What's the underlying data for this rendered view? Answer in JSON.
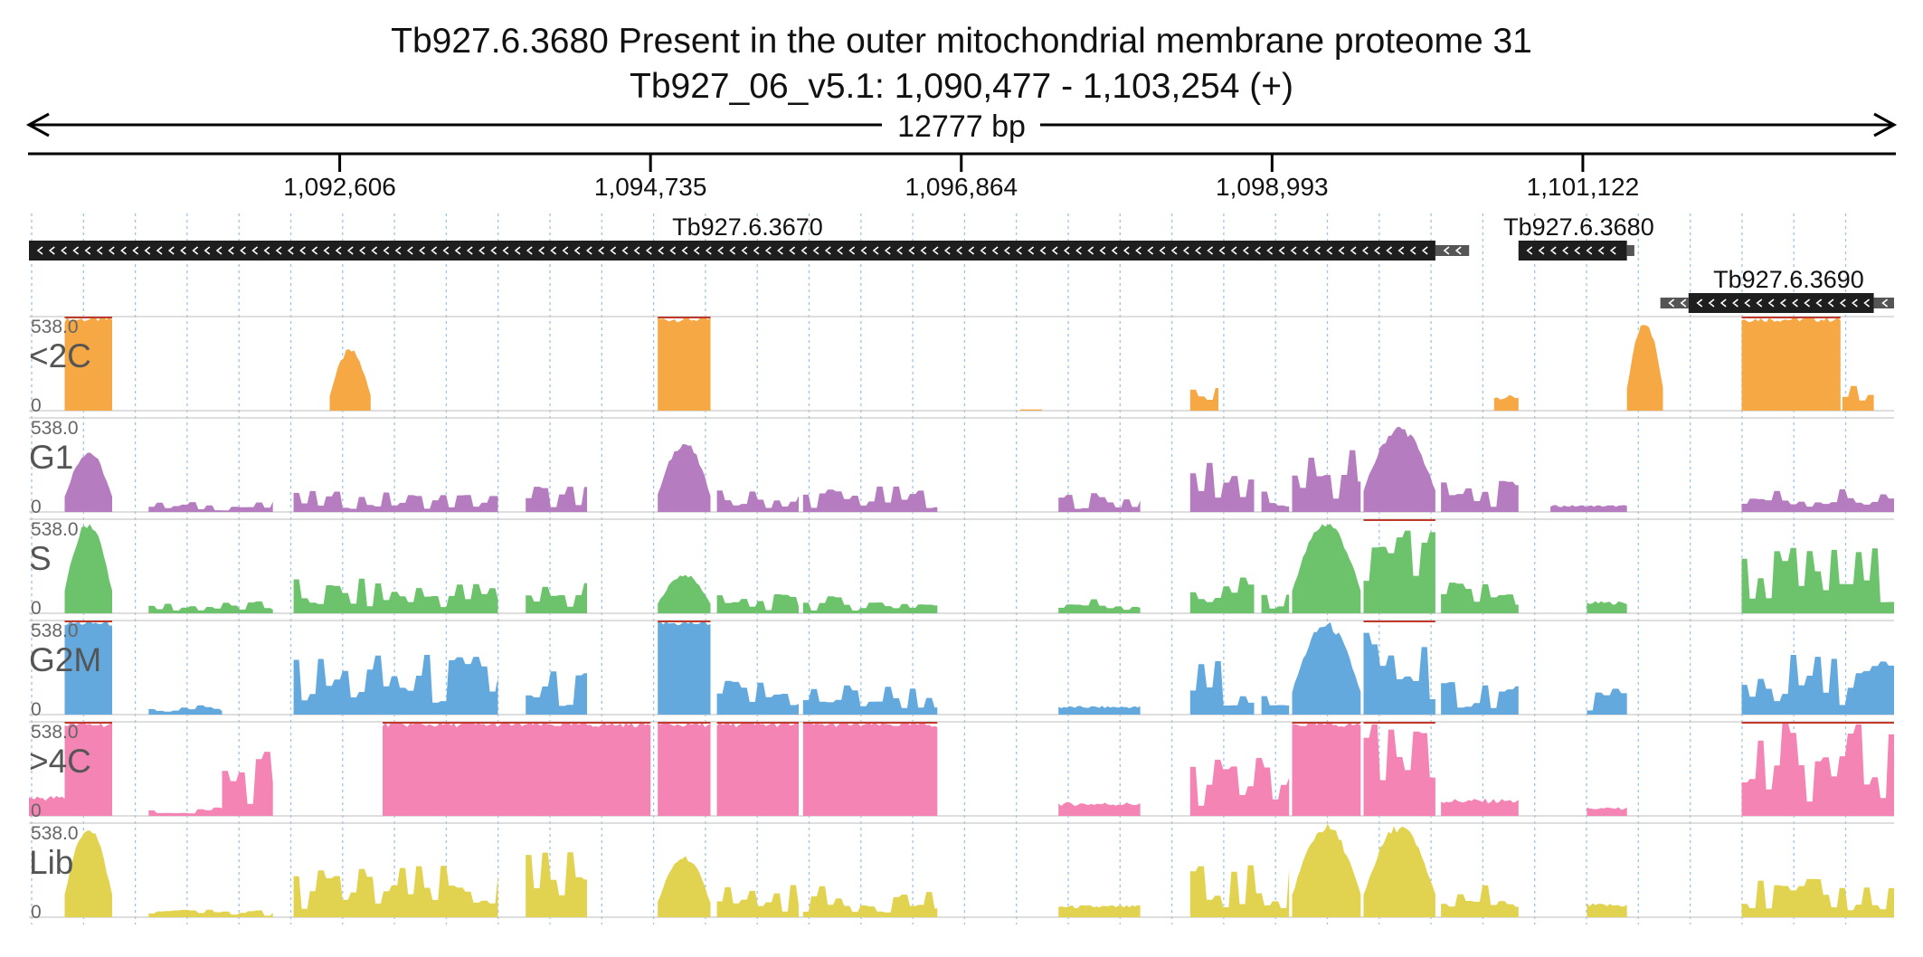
{
  "chart_data": {
    "type": "area",
    "title": "Tb927.6.3680  Present in the outer mitochondrial membrane proteome 31",
    "subtitle": "Tb927_06_v5.1: 1,090,477 - 1,103,254 (+)",
    "span_label": "12777 bp",
    "region": {
      "start": 1090477,
      "end": 1103254
    },
    "ticks": [
      {
        "pos": 1092606,
        "label": "1,092,606"
      },
      {
        "pos": 1094735,
        "label": "1,094,735"
      },
      {
        "pos": 1096864,
        "label": "1,096,864"
      },
      {
        "pos": 1098993,
        "label": "1,098,993"
      },
      {
        "pos": 1101122,
        "label": "1,101,122"
      }
    ],
    "genes": [
      {
        "name": "Tb927.6.3670",
        "label": "Tb927.6.3670",
        "cds": [
          1090477,
          1100112
        ],
        "utr": [
          1100112,
          1100343
        ],
        "strand": "-",
        "row": 0,
        "label_pos": 1095400
      },
      {
        "name": "Tb927.6.3680",
        "label": "Tb927.6.3680",
        "cds": [
          1100681,
          1101424
        ],
        "utr": [
          1101424,
          1101475
        ],
        "strand": "-",
        "row": 0,
        "label_pos": 1101094
      },
      {
        "name": "Tb927.6.3690",
        "label": "Tb927.6.3690",
        "cds": [
          1101846,
          1103115
        ],
        "utr_left": [
          1101653,
          1101846
        ],
        "utr_right": [
          1103115,
          1103254
        ],
        "strand": "-",
        "row": 1,
        "label_pos": 1102532
      }
    ],
    "y_range": [
      0,
      538.0
    ],
    "y_max_label": "538.0",
    "y_min_label": "0",
    "tracks": [
      {
        "name": "<2C",
        "color": "#f5a843",
        "segments": [
          {
            "start": 1090722,
            "end": 1091047,
            "peak": 538,
            "shape": "box"
          },
          {
            "start": 1092537,
            "end": 1092818,
            "peak": 360,
            "shape": "hump"
          },
          {
            "start": 1094785,
            "end": 1095146,
            "peak": 538,
            "shape": "box"
          },
          {
            "start": 1097267,
            "end": 1097418,
            "peak": 8,
            "shape": "flat"
          },
          {
            "start": 1098432,
            "end": 1098625,
            "peak": 150,
            "shape": "spiky"
          },
          {
            "start": 1100514,
            "end": 1100681,
            "peak": 90,
            "shape": "flat"
          },
          {
            "start": 1101424,
            "end": 1101671,
            "peak": 538,
            "shape": "hump"
          },
          {
            "start": 1102210,
            "end": 1102887,
            "peak": 538,
            "shape": "box"
          },
          {
            "start": 1102900,
            "end": 1103115,
            "peak": 160,
            "shape": "spiky"
          }
        ]
      },
      {
        "name": "G1",
        "color": "#b57dbf",
        "segments": [
          {
            "start": 1090722,
            "end": 1091047,
            "peak": 360,
            "shape": "hump"
          },
          {
            "start": 1091297,
            "end": 1092148,
            "peak": 60,
            "shape": "spiky"
          },
          {
            "start": 1092290,
            "end": 1093690,
            "peak": 120,
            "shape": "spiky"
          },
          {
            "start": 1093880,
            "end": 1094300,
            "peak": 180,
            "shape": "spiky"
          },
          {
            "start": 1094785,
            "end": 1095146,
            "peak": 410,
            "shape": "hump"
          },
          {
            "start": 1095190,
            "end": 1095750,
            "peak": 130,
            "shape": "spiky"
          },
          {
            "start": 1095780,
            "end": 1096700,
            "peak": 150,
            "shape": "spiky"
          },
          {
            "start": 1097530,
            "end": 1098090,
            "peak": 120,
            "shape": "spiky"
          },
          {
            "start": 1098432,
            "end": 1098870,
            "peak": 360,
            "shape": "spiky"
          },
          {
            "start": 1098920,
            "end": 1099110,
            "peak": 120,
            "shape": "spiky"
          },
          {
            "start": 1099130,
            "end": 1099600,
            "peak": 430,
            "shape": "spiky"
          },
          {
            "start": 1099620,
            "end": 1100112,
            "peak": 500,
            "shape": "hump"
          },
          {
            "start": 1100150,
            "end": 1100681,
            "peak": 180,
            "shape": "spiky"
          },
          {
            "start": 1100900,
            "end": 1101424,
            "peak": 40,
            "shape": "flat"
          },
          {
            "start": 1102210,
            "end": 1103254,
            "peak": 150,
            "shape": "spiky"
          }
        ]
      },
      {
        "name": "S",
        "color": "#6cc36c",
        "segments": [
          {
            "start": 1090722,
            "end": 1091047,
            "peak": 538,
            "shape": "hump"
          },
          {
            "start": 1091297,
            "end": 1092148,
            "peak": 70,
            "shape": "spiky"
          },
          {
            "start": 1092290,
            "end": 1093690,
            "peak": 200,
            "shape": "spiky"
          },
          {
            "start": 1093880,
            "end": 1094300,
            "peak": 210,
            "shape": "spiky"
          },
          {
            "start": 1094785,
            "end": 1095146,
            "peak": 230,
            "shape": "hump"
          },
          {
            "start": 1095190,
            "end": 1095750,
            "peak": 110,
            "shape": "spiky"
          },
          {
            "start": 1095780,
            "end": 1096700,
            "peak": 100,
            "shape": "spiky"
          },
          {
            "start": 1097530,
            "end": 1098090,
            "peak": 100,
            "shape": "spiky"
          },
          {
            "start": 1098432,
            "end": 1098870,
            "peak": 230,
            "shape": "spiky"
          },
          {
            "start": 1098920,
            "end": 1099110,
            "peak": 120,
            "shape": "spiky"
          },
          {
            "start": 1099130,
            "end": 1099600,
            "peak": 538,
            "shape": "hump"
          },
          {
            "start": 1099620,
            "end": 1100112,
            "peak": 538,
            "shape": "spiky"
          },
          {
            "start": 1100150,
            "end": 1100681,
            "peak": 200,
            "shape": "spiky"
          },
          {
            "start": 1101150,
            "end": 1101424,
            "peak": 70,
            "shape": "flat"
          },
          {
            "start": 1102210,
            "end": 1103254,
            "peak": 400,
            "shape": "spiky"
          }
        ]
      },
      {
        "name": "G2M",
        "color": "#64a9de",
        "segments": [
          {
            "start": 1090722,
            "end": 1091047,
            "peak": 538,
            "shape": "box"
          },
          {
            "start": 1091297,
            "end": 1091800,
            "peak": 60,
            "shape": "spiky"
          },
          {
            "start": 1092290,
            "end": 1093690,
            "peak": 360,
            "shape": "spiky"
          },
          {
            "start": 1093880,
            "end": 1094300,
            "peak": 260,
            "shape": "spiky"
          },
          {
            "start": 1094785,
            "end": 1095146,
            "peak": 538,
            "shape": "box"
          },
          {
            "start": 1095190,
            "end": 1095750,
            "peak": 220,
            "shape": "spiky"
          },
          {
            "start": 1095780,
            "end": 1096700,
            "peak": 190,
            "shape": "spiky"
          },
          {
            "start": 1097530,
            "end": 1098090,
            "peak": 50,
            "shape": "flat"
          },
          {
            "start": 1098432,
            "end": 1098870,
            "peak": 330,
            "shape": "spiky"
          },
          {
            "start": 1098920,
            "end": 1099110,
            "peak": 200,
            "shape": "spiky"
          },
          {
            "start": 1099130,
            "end": 1099600,
            "peak": 538,
            "shape": "hump"
          },
          {
            "start": 1099620,
            "end": 1100112,
            "peak": 538,
            "shape": "spiky"
          },
          {
            "start": 1100150,
            "end": 1100681,
            "peak": 230,
            "shape": "spiky"
          },
          {
            "start": 1101150,
            "end": 1101424,
            "peak": 150,
            "shape": "spiky"
          },
          {
            "start": 1102210,
            "end": 1103254,
            "peak": 360,
            "shape": "spiky"
          }
        ]
      },
      {
        "name": ">4C",
        "color": "#f484b4",
        "segments": [
          {
            "start": 1090477,
            "end": 1090722,
            "peak": 120,
            "shape": "flat"
          },
          {
            "start": 1090722,
            "end": 1091047,
            "peak": 538,
            "shape": "box"
          },
          {
            "start": 1091297,
            "end": 1091800,
            "peak": 60,
            "shape": "spiky"
          },
          {
            "start": 1091800,
            "end": 1092148,
            "peak": 430,
            "shape": "spiky"
          },
          {
            "start": 1092900,
            "end": 1094735,
            "peak": 538,
            "shape": "box"
          },
          {
            "start": 1094785,
            "end": 1095146,
            "peak": 538,
            "shape": "box"
          },
          {
            "start": 1095190,
            "end": 1095750,
            "peak": 538,
            "shape": "box"
          },
          {
            "start": 1095780,
            "end": 1096700,
            "peak": 538,
            "shape": "box"
          },
          {
            "start": 1097530,
            "end": 1098090,
            "peak": 80,
            "shape": "flat"
          },
          {
            "start": 1098432,
            "end": 1099110,
            "peak": 360,
            "shape": "spiky"
          },
          {
            "start": 1099130,
            "end": 1099600,
            "peak": 538,
            "shape": "box"
          },
          {
            "start": 1099620,
            "end": 1100112,
            "peak": 538,
            "shape": "spiky"
          },
          {
            "start": 1100150,
            "end": 1100681,
            "peak": 100,
            "shape": "flat"
          },
          {
            "start": 1101150,
            "end": 1101424,
            "peak": 50,
            "shape": "flat"
          },
          {
            "start": 1102210,
            "end": 1103254,
            "peak": 538,
            "shape": "spiky"
          }
        ]
      },
      {
        "name": "Lib",
        "color": "#e1d24f",
        "segments": [
          {
            "start": 1090722,
            "end": 1091047,
            "peak": 538,
            "shape": "hump"
          },
          {
            "start": 1091297,
            "end": 1092148,
            "peak": 50,
            "shape": "spiky"
          },
          {
            "start": 1092290,
            "end": 1093690,
            "peak": 300,
            "shape": "spiky"
          },
          {
            "start": 1093880,
            "end": 1094300,
            "peak": 380,
            "shape": "spiky"
          },
          {
            "start": 1094785,
            "end": 1095146,
            "peak": 360,
            "shape": "hump"
          },
          {
            "start": 1095190,
            "end": 1095750,
            "peak": 200,
            "shape": "spiky"
          },
          {
            "start": 1095780,
            "end": 1096700,
            "peak": 180,
            "shape": "spiky"
          },
          {
            "start": 1097530,
            "end": 1098090,
            "peak": 70,
            "shape": "flat"
          },
          {
            "start": 1098432,
            "end": 1099110,
            "peak": 300,
            "shape": "spiky"
          },
          {
            "start": 1099130,
            "end": 1099600,
            "peak": 538,
            "shape": "hump"
          },
          {
            "start": 1099620,
            "end": 1100112,
            "peak": 538,
            "shape": "hump"
          },
          {
            "start": 1100150,
            "end": 1100681,
            "peak": 200,
            "shape": "spiky"
          },
          {
            "start": 1101150,
            "end": 1101424,
            "peak": 80,
            "shape": "flat"
          },
          {
            "start": 1102210,
            "end": 1103254,
            "peak": 220,
            "shape": "spiky"
          }
        ]
      }
    ]
  }
}
